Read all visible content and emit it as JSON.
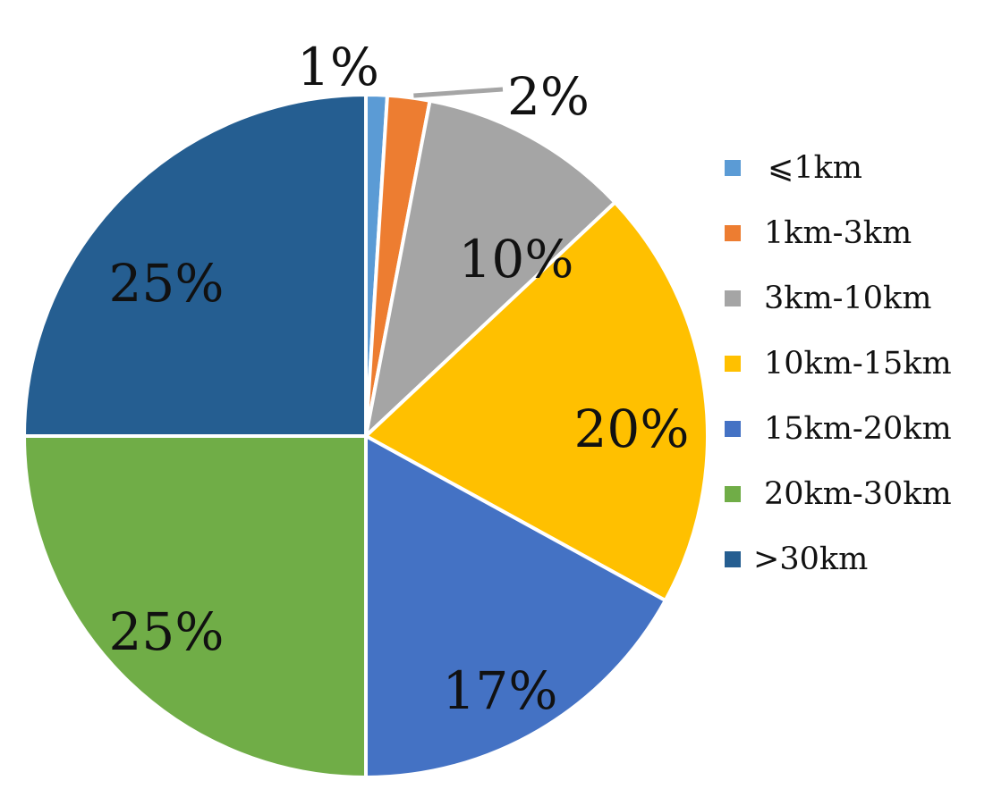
{
  "chart_data": {
    "type": "pie",
    "title": "",
    "legend_position": "right",
    "start_angle": "top",
    "direction": "clockwise",
    "slices": [
      {
        "name": "⩽1km",
        "value": 1,
        "label": "1%",
        "color": "#5B9BD5"
      },
      {
        "name": "1km-3km",
        "value": 2,
        "label": "2%",
        "color": "#ED7D31"
      },
      {
        "name": "3km-10km",
        "value": 10,
        "label": "10%",
        "color": "#A5A5A5"
      },
      {
        "name": "10km-15km",
        "value": 20,
        "label": "20%",
        "color": "#FFC000"
      },
      {
        "name": "15km-20km",
        "value": 17,
        "label": "17%",
        "color": "#4472C4"
      },
      {
        "name": "20km-30km",
        "value": 25,
        "label": "25%",
        "color": "#70AD47"
      },
      {
        "name": ">30km",
        "value": 25,
        "label": "25%",
        "color": "#255E91"
      }
    ]
  }
}
